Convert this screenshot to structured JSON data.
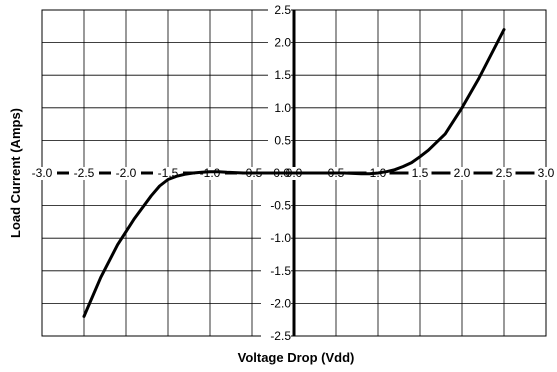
{
  "chart_data": {
    "type": "line",
    "xlabel": "Voltage Drop (Vdd)",
    "ylabel": "Load Current (Amps)",
    "xlim": [
      -3.0,
      3.0
    ],
    "ylim": [
      -2.5,
      2.5
    ],
    "grid": true,
    "x_ticks": [
      -3.0,
      -2.5,
      -2.0,
      -1.5,
      -1.0,
      -0.5,
      0.0,
      0.5,
      1.0,
      1.5,
      2.0,
      2.5,
      3.0
    ],
    "x_tick_labels": [
      "-3.0",
      "-2.5",
      "-2.0",
      "-1.5",
      "-1.0",
      "-0.5",
      "0.0",
      "0.5",
      "1.0",
      "1.5",
      "2.0",
      "2.5",
      "3.0"
    ],
    "y_ticks": [
      2.5,
      2.0,
      1.5,
      1.0,
      0.5,
      0.0,
      -0.5,
      -1.0,
      -1.5,
      -2.0,
      -2.5
    ],
    "y_tick_labels": [
      "2.5",
      "2.0",
      "1.5",
      "1.0",
      "0.5",
      "0.0",
      "-0.5",
      "-1.0",
      "-1.5",
      "-2.0",
      "-2.5"
    ],
    "series": [
      {
        "color": "#000000",
        "x": [
          -2.5,
          -2.3,
          -2.1,
          -1.9,
          -1.7,
          -1.6,
          -1.5,
          -1.4,
          -1.3,
          -1.2,
          -1.1,
          -1.0,
          -0.9,
          -0.8,
          -0.6,
          -0.4,
          -0.2,
          0.0,
          0.2,
          0.4,
          0.6,
          0.8,
          0.9,
          1.0,
          1.1,
          1.2,
          1.3,
          1.4,
          1.5,
          1.6,
          1.8,
          2.0,
          2.2,
          2.5
        ],
        "y": [
          -2.2,
          -1.6,
          -1.1,
          -0.7,
          -0.35,
          -0.2,
          -0.1,
          -0.05,
          -0.02,
          0.0,
          0.01,
          0.02,
          0.02,
          0.01,
          0.0,
          0.0,
          0.0,
          0.0,
          0.0,
          0.0,
          0.0,
          -0.01,
          -0.01,
          0.0,
          0.02,
          0.05,
          0.1,
          0.16,
          0.25,
          0.35,
          0.6,
          1.0,
          1.45,
          2.2
        ]
      }
    ]
  }
}
